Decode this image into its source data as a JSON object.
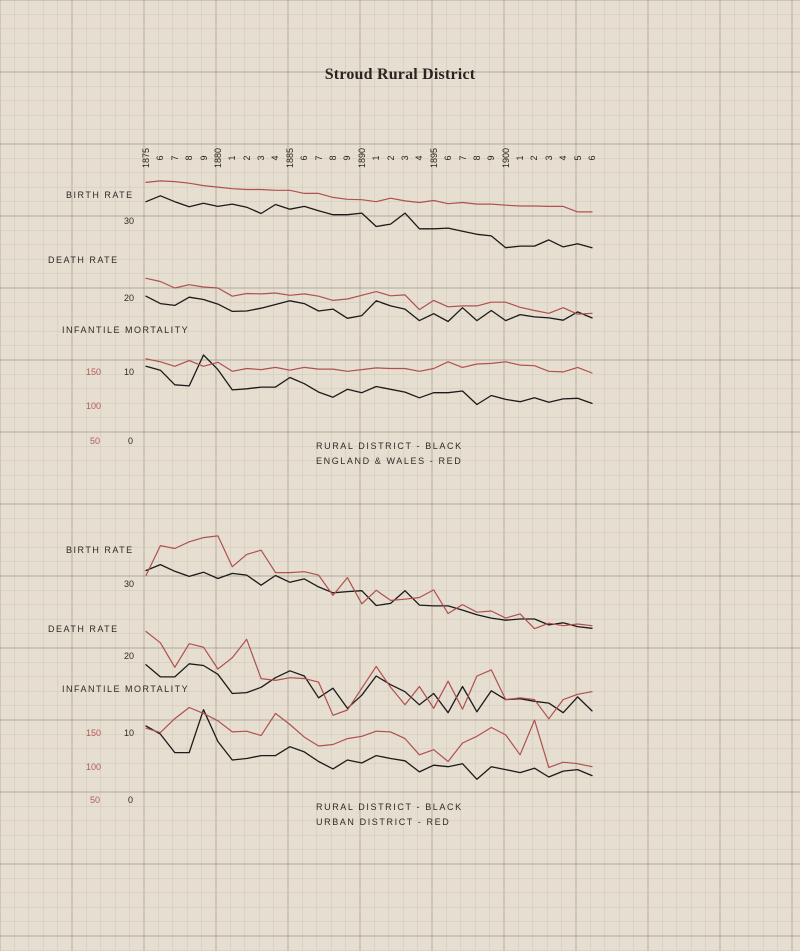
{
  "title": "Stroud Rural District",
  "colors": {
    "rural": "#1c1a1a",
    "comparison": "#b05050",
    "paper": "#e6ded0",
    "grid": "#b8b0a4"
  },
  "years": [
    "1875",
    "6",
    "7",
    "8",
    "9",
    "1880",
    "1",
    "2",
    "3",
    "4",
    "1885",
    "6",
    "7",
    "8",
    "9",
    "1890",
    "1",
    "2",
    "3",
    "4",
    "1895",
    "6",
    "7",
    "8",
    "9",
    "1900",
    "1",
    "2",
    "3",
    "4",
    "5",
    "6"
  ],
  "chart_data": [
    {
      "type": "line",
      "legend": [
        "Rural District - Black",
        "England & Wales - Red"
      ],
      "labels": {
        "birth_rate": "Birth Rate",
        "death_rate": "Death Rate",
        "infant_mortality": "Infantile Mortality"
      },
      "left_ticks": [
        "30",
        "20",
        "10",
        "0"
      ],
      "im_ticks": [
        "150",
        "100",
        "50"
      ],
      "x": [
        1875,
        1876,
        1877,
        1878,
        1879,
        1880,
        1881,
        1882,
        1883,
        1884,
        1885,
        1886,
        1887,
        1888,
        1889,
        1890,
        1891,
        1892,
        1893,
        1894,
        1895,
        1896,
        1897,
        1898,
        1899,
        1900,
        1901,
        1902,
        1903,
        1904,
        1905,
        1906
      ],
      "series": [
        {
          "name": "Birth Rate",
          "group": "Rural District",
          "color": "#1c1a1a",
          "panel": "birth",
          "values": [
            30.5,
            32.0,
            30.5,
            29.2,
            30.1,
            29.3,
            29.9,
            29.1,
            27.5,
            29.8,
            28.6,
            29.3,
            28.2,
            27.2,
            27.2,
            27.6,
            24.2,
            24.8,
            27.6,
            23.6,
            23.6,
            23.8,
            23.0,
            22.2,
            21.8,
            18.8,
            19.2,
            19.2,
            20.8,
            19.0,
            19.8,
            18.8
          ]
        },
        {
          "name": "Birth Rate",
          "group": "England & Wales",
          "color": "#b05050",
          "panel": "birth",
          "values": [
            35.4,
            35.8,
            35.6,
            35.2,
            34.6,
            34.2,
            33.8,
            33.6,
            33.6,
            33.4,
            33.4,
            32.6,
            32.6,
            31.6,
            31.1,
            31.0,
            30.5,
            31.4,
            30.7,
            30.3,
            30.8,
            30.0,
            30.3,
            29.9,
            29.9,
            29.6,
            29.4,
            29.4,
            29.3,
            29.3,
            27.9,
            27.9
          ]
        },
        {
          "name": "Death Rate",
          "group": "Rural District",
          "color": "#1c1a1a",
          "panel": "death",
          "values": [
            19.6,
            18.0,
            17.6,
            19.4,
            18.9,
            17.9,
            16.3,
            16.4,
            17.0,
            17.8,
            18.6,
            18.0,
            16.4,
            16.8,
            14.8,
            15.4,
            18.6,
            17.5,
            16.8,
            14.3,
            15.8,
            14.1,
            17.1,
            14.3,
            16.5,
            14.3,
            15.6,
            15.1,
            14.9,
            14.4,
            16.2,
            14.9
          ]
        },
        {
          "name": "Death Rate",
          "group": "England & Wales",
          "color": "#b05050",
          "panel": "death",
          "values": [
            23.5,
            22.8,
            21.4,
            22.1,
            21.6,
            21.4,
            19.6,
            20.2,
            20.1,
            20.3,
            19.8,
            20.1,
            19.6,
            18.7,
            19.0,
            19.8,
            20.6,
            19.7,
            19.9,
            16.7,
            18.7,
            17.3,
            17.5,
            17.5,
            18.3,
            18.3,
            17.2,
            16.5,
            15.9,
            17.1,
            15.7,
            15.9
          ]
        },
        {
          "name": "Infantile Mortality",
          "group": "Rural District",
          "color": "#1c1a1a",
          "panel": "im",
          "values": [
            140,
            133,
            107,
            105,
            160,
            134,
            98,
            100,
            103,
            103,
            120,
            109,
            94,
            85,
            99,
            93,
            104,
            99,
            94,
            84,
            93,
            93,
            96,
            72,
            88,
            81,
            77,
            84,
            76,
            82,
            83,
            74
          ]
        },
        {
          "name": "Infantile Mortality",
          "group": "England & Wales",
          "color": "#b05050",
          "panel": "im",
          "values": [
            153,
            148,
            140,
            150,
            140,
            147,
            131,
            136,
            134,
            138,
            133,
            138,
            135,
            135,
            131,
            134,
            137,
            136,
            136,
            131,
            136,
            148,
            138,
            144,
            145,
            148,
            142,
            141,
            131,
            130,
            138,
            128
          ]
        }
      ]
    },
    {
      "type": "line",
      "legend": [
        "Rural District - Black",
        "Urban District - Red"
      ],
      "labels": {
        "birth_rate": "Birth Rate",
        "death_rate": "Death Rate",
        "infant_mortality": "Infantile Mortality"
      },
      "left_ticks": [
        "30",
        "20",
        "10",
        "0"
      ],
      "im_ticks": [
        "150",
        "100",
        "50"
      ],
      "x": [
        1875,
        1876,
        1877,
        1878,
        1879,
        1880,
        1881,
        1882,
        1883,
        1884,
        1885,
        1886,
        1887,
        1888,
        1889,
        1890,
        1891,
        1892,
        1893,
        1894,
        1895,
        1896,
        1897,
        1898,
        1899,
        1900,
        1901,
        1902,
        1903,
        1904,
        1905,
        1906
      ],
      "series": [
        {
          "name": "Birth Rate",
          "group": "Rural District",
          "color": "#1c1a1a",
          "panel": "birth",
          "values": [
            30.3,
            31.7,
            30.1,
            28.9,
            29.9,
            28.4,
            29.6,
            29.2,
            26.8,
            29.1,
            27.5,
            28.3,
            26.4,
            25.0,
            25.3,
            25.5,
            22.0,
            22.5,
            25.5,
            22.1,
            21.9,
            21.9,
            20.9,
            19.8,
            19.0,
            18.5,
            18.8,
            18.8,
            17.4,
            17.9,
            17.0,
            16.6
          ]
        },
        {
          "name": "Birth Rate",
          "group": "Urban District",
          "color": "#b05050",
          "panel": "birth",
          "values": [
            29.1,
            36.2,
            35.5,
            37.1,
            38.1,
            38.5,
            31.2,
            34.1,
            35.1,
            29.8,
            29.8,
            30.0,
            29.2,
            24.4,
            28.6,
            22.4,
            25.6,
            23.2,
            23.5,
            23.9,
            25.7,
            20.1,
            22.2,
            20.4,
            20.7,
            19.0,
            20.0,
            16.5,
            17.8,
            17.2,
            17.6,
            17.2
          ]
        },
        {
          "name": "Death Rate",
          "group": "Rural District",
          "color": "#1c1a1a",
          "panel": "death",
          "values": [
            18.8,
            17.4,
            17.4,
            18.9,
            18.7,
            17.7,
            15.5,
            15.6,
            16.2,
            17.3,
            18.1,
            17.5,
            15.0,
            16.1,
            13.8,
            15.3,
            17.5,
            16.5,
            15.7,
            14.2,
            15.5,
            13.3,
            16.3,
            13.4,
            15.8,
            14.8,
            14.9,
            14.6,
            14.4,
            13.3,
            15.1,
            13.5
          ]
        },
        {
          "name": "Death Rate",
          "group": "Urban District",
          "color": "#b05050",
          "panel": "death",
          "values": [
            22.6,
            21.3,
            18.5,
            21.2,
            20.8,
            18.3,
            19.6,
            21.7,
            17.2,
            17.0,
            17.3,
            17.2,
            16.8,
            13.0,
            13.6,
            16.1,
            18.6,
            16.2,
            14.2,
            16.3,
            13.8,
            16.9,
            13.7,
            17.5,
            18.2,
            14.8,
            15.0,
            14.8,
            12.6,
            14.8,
            15.4,
            15.7
          ]
        },
        {
          "name": "Infantile Mortality",
          "group": "Rural District",
          "color": "#1c1a1a",
          "panel": "im",
          "values": [
            143,
            132,
            107,
            107,
            165,
            122,
            97,
            99,
            103,
            103,
            115,
            108,
            95,
            85,
            97,
            93,
            103,
            99,
            96,
            81,
            90,
            88,
            92,
            71,
            88,
            84,
            80,
            86,
            74,
            82,
            84,
            76
          ]
        },
        {
          "name": "Infantile Mortality",
          "group": "Urban District",
          "color": "#b05050",
          "panel": "im",
          "values": [
            140,
            134,
            153,
            168,
            160,
            150,
            135,
            136,
            130,
            160,
            145,
            128,
            116,
            118,
            126,
            129,
            136,
            135,
            126,
            104,
            111,
            95,
            120,
            129,
            141,
            131,
            104,
            151,
            87,
            94,
            92,
            88
          ]
        }
      ]
    }
  ]
}
